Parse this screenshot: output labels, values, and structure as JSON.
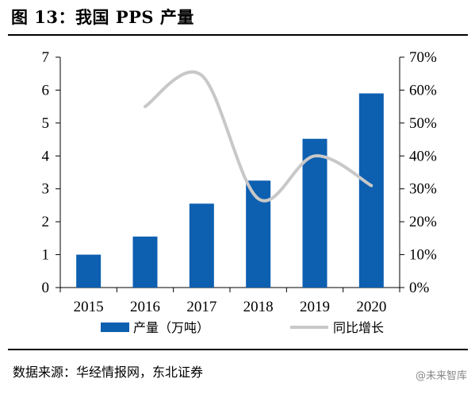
{
  "header": {
    "title": "图 13：我国 PPS 产量"
  },
  "footer": {
    "source": "数据来源：华经情报网，东北证券",
    "watermark": "@未来智库"
  },
  "colors": {
    "bar": "#0d5fb0",
    "line": "#c8c8c8",
    "axis": "#000000"
  },
  "chart_data": {
    "type": "bar",
    "categories": [
      "2015",
      "2016",
      "2017",
      "2018",
      "2019",
      "2020"
    ],
    "series": [
      {
        "name": "产量（万吨）",
        "type": "bar",
        "axis": "left",
        "values": [
          1.0,
          1.55,
          2.55,
          3.25,
          4.52,
          5.9
        ]
      },
      {
        "name": "同比增长",
        "type": "line",
        "axis": "right",
        "smooth": true,
        "values": [
          null,
          0.55,
          0.645,
          0.27,
          0.4,
          0.31
        ]
      }
    ],
    "y_left": {
      "min": 0,
      "max": 7,
      "ticks": [
        "0",
        "1",
        "2",
        "3",
        "4",
        "5",
        "6",
        "7"
      ]
    },
    "y_right": {
      "min": 0,
      "max": 0.7,
      "ticks": [
        "0%",
        "10%",
        "20%",
        "30%",
        "40%",
        "50%",
        "60%",
        "70%"
      ]
    },
    "grid": false,
    "legend": "bottom"
  }
}
